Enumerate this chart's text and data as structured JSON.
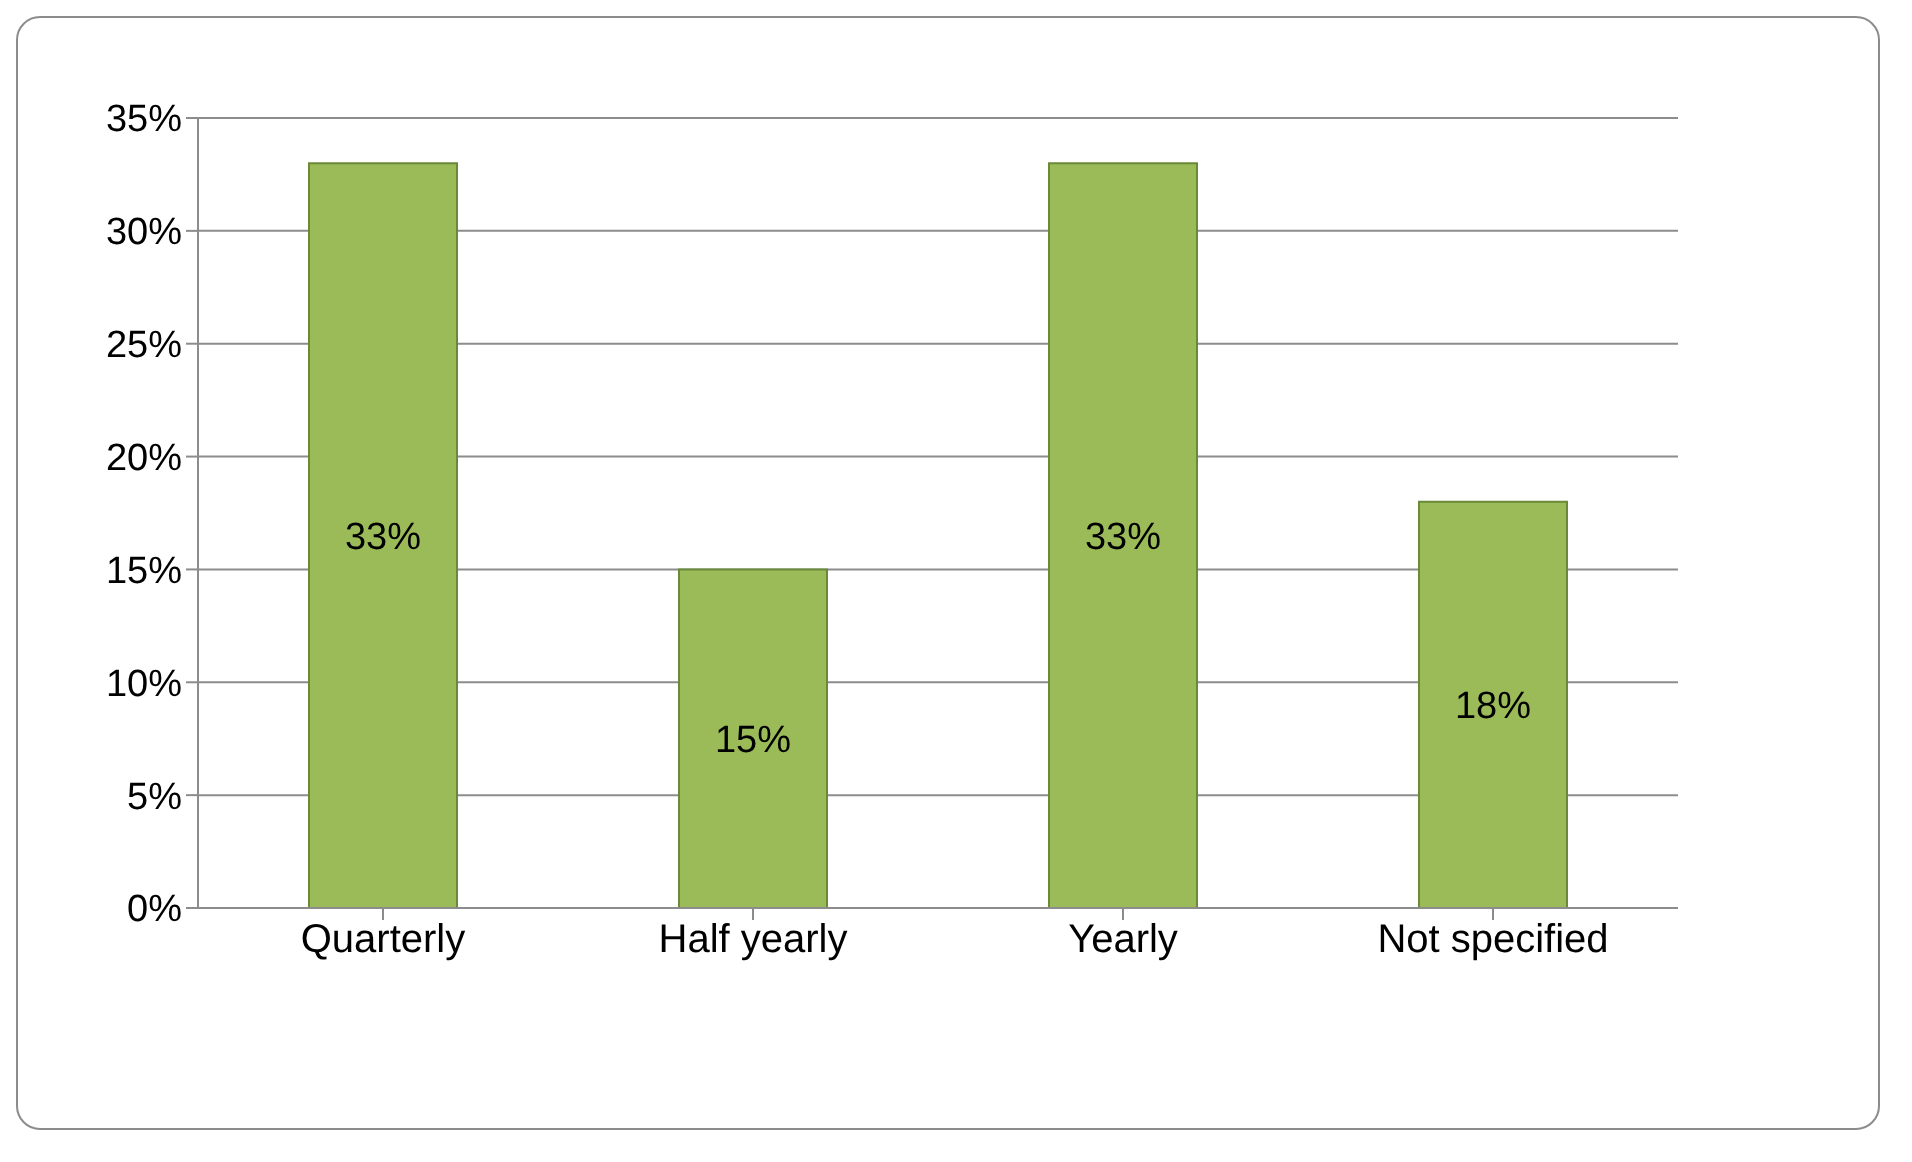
{
  "chart_data": {
    "type": "bar",
    "categories": [
      "Quarterly",
      "Half yearly",
      "Yearly",
      "Not specified"
    ],
    "values": [
      33,
      15,
      33,
      18
    ],
    "color": "#9bbb59",
    "value_labels": [
      "33%",
      "15%",
      "33%",
      "18%"
    ],
    "ylim": [
      0,
      35
    ],
    "yticks": [
      {
        "value": 0,
        "label": "0%"
      },
      {
        "value": 5,
        "label": "5%"
      },
      {
        "value": 10,
        "label": "10%"
      },
      {
        "value": 15,
        "label": "15%"
      },
      {
        "value": 20,
        "label": "20%"
      },
      {
        "value": 25,
        "label": "25%"
      },
      {
        "value": 30,
        "label": "30%"
      },
      {
        "value": 35,
        "label": "35%"
      }
    ],
    "grid": "y"
  }
}
